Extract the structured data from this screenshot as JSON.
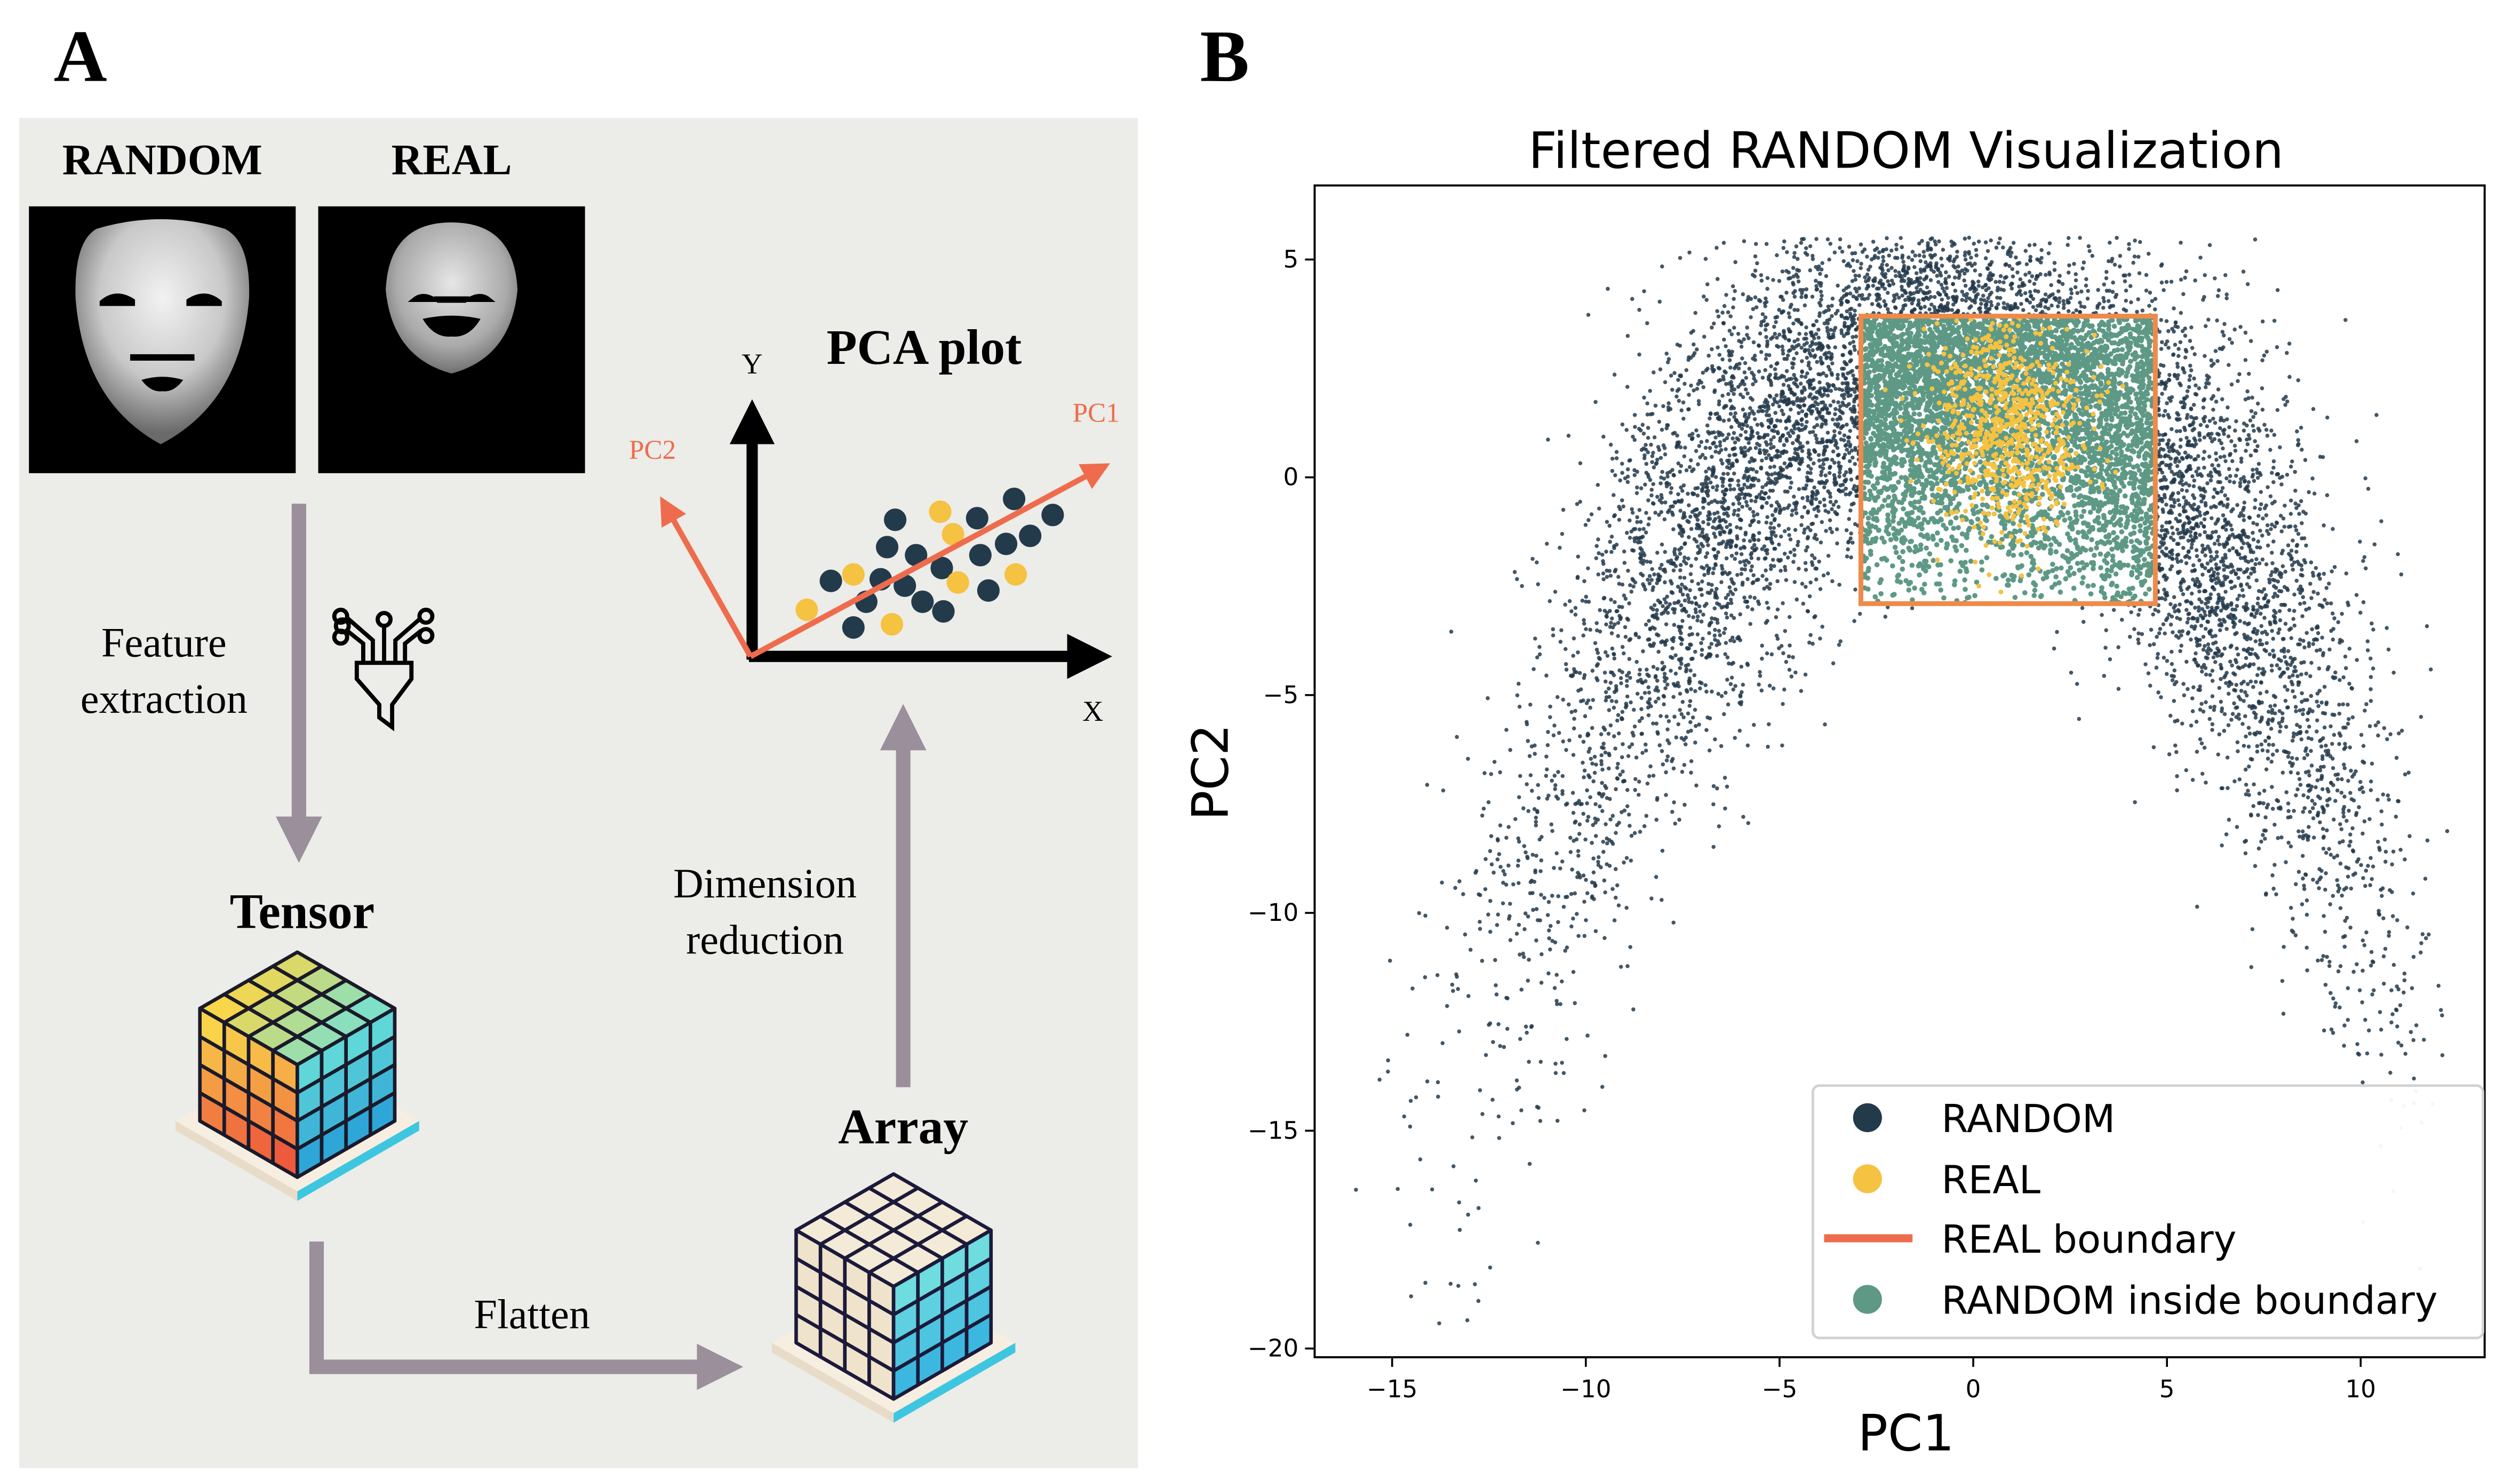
{
  "panel_a": {
    "label": "A",
    "random_label": "RANDOM",
    "real_label": "REAL",
    "feature_extraction": [
      "Feature",
      "extraction"
    ],
    "tensor_label": "Tensor",
    "flatten_label": "Flatten",
    "array_label": "Array",
    "dimension_reduction": [
      "Dimension",
      "reduction"
    ],
    "pca_title": "PCA plot",
    "axis_y": "Y",
    "axis_x": "X",
    "pc1": "PC1",
    "pc2": "PC2",
    "icons": [
      "face-image-icon",
      "funnel-icon",
      "tensor-cube-icon",
      "array-cube-icon",
      "arrow-icon"
    ],
    "colors": {
      "background": "#ecece8",
      "arrow": "#9a8f9a",
      "pc_axis": "#ee6c4d",
      "dark_dot": "#233a4b",
      "yellow_dot": "#f5c242"
    }
  },
  "chart_data": {
    "panel_label": "B",
    "type": "scatter",
    "title": "Filtered RANDOM Visualization",
    "xlabel": "PC1",
    "ylabel": "PC2",
    "xlim": [
      -17,
      13.2
    ],
    "ylim": [
      -20.2,
      6.7
    ],
    "xticks": [
      -15,
      -10,
      -5,
      0,
      5,
      10
    ],
    "yticks": [
      5,
      0,
      -5,
      -10,
      -15,
      -20
    ],
    "xtick_labels": [
      "−15",
      "−10",
      "−5",
      "0",
      "5",
      "10"
    ],
    "ytick_labels": [
      "5",
      "0",
      "−5",
      "−10",
      "−15",
      "−20"
    ],
    "grid": false,
    "legend_position": "lower-right",
    "boundary": {
      "x": [
        -2.9,
        4.7
      ],
      "y": [
        -2.9,
        3.7
      ]
    },
    "series": [
      {
        "name": "RANDOM",
        "kind": "points",
        "color": "#233a4b",
        "shape": "inverted-U, x approx -16 to 12, peak near x=0, y=5"
      },
      {
        "name": "REAL",
        "kind": "points",
        "color": "#f5c242",
        "center": [
          1,
          1
        ]
      },
      {
        "name": "REAL boundary",
        "kind": "rectangle",
        "color": "#ee6c4d"
      },
      {
        "name": "RANDOM inside boundary",
        "kind": "points",
        "color": "#5e9985"
      }
    ]
  }
}
